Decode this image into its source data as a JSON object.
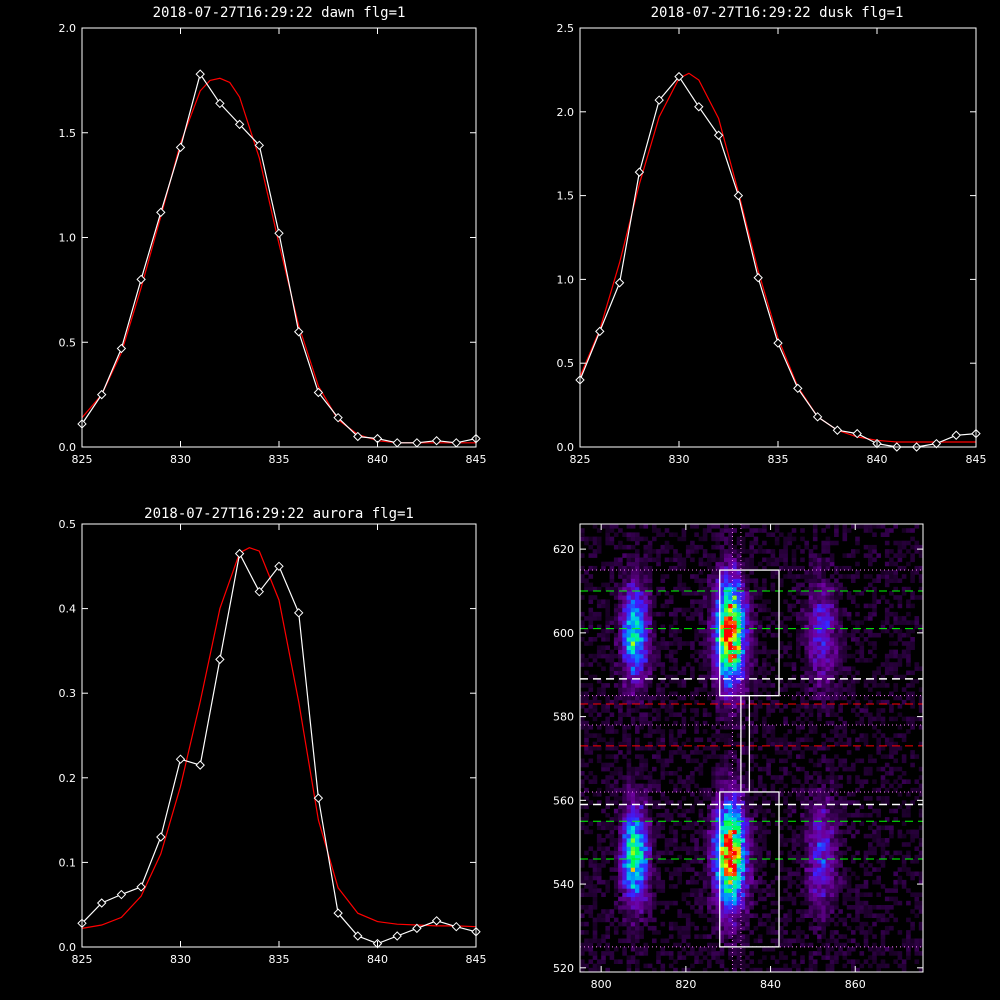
{
  "chart_data": [
    {
      "type": "line",
      "title": "2018-07-27T16:29:22 dawn flg=1",
      "xlim": [
        825,
        845
      ],
      "ylim": [
        0,
        2.0
      ],
      "xticks": [
        825,
        830,
        835,
        840,
        845
      ],
      "yticks": [
        0.0,
        0.5,
        1.0,
        1.5,
        2.0
      ],
      "xtick_labels": [
        "825",
        "830",
        "835",
        "840",
        "845"
      ],
      "ytick_labels": [
        "0.0",
        "0.5",
        "1.0",
        "1.5",
        "2.0"
      ],
      "series": [
        {
          "color": "#ffffff",
          "markers": true,
          "x": [
            825,
            826,
            827,
            828,
            829,
            830,
            831,
            832,
            833,
            834,
            835,
            836,
            837,
            838,
            839,
            840,
            841,
            842,
            843,
            844,
            845
          ],
          "y": [
            0.11,
            0.25,
            0.47,
            0.8,
            1.12,
            1.43,
            1.78,
            1.64,
            1.54,
            1.44,
            1.02,
            0.55,
            0.26,
            0.14,
            0.05,
            0.04,
            0.02,
            0.02,
            0.03,
            0.02,
            0.04
          ]
        },
        {
          "color": "#ff0000",
          "markers": false,
          "x": [
            825,
            826,
            827,
            828,
            829,
            830,
            831,
            831.5,
            832,
            832.5,
            833,
            834,
            835,
            836,
            837,
            838,
            839,
            840,
            841,
            842,
            843,
            844,
            845
          ],
          "y": [
            0.14,
            0.25,
            0.45,
            0.76,
            1.1,
            1.45,
            1.7,
            1.75,
            1.76,
            1.74,
            1.67,
            1.38,
            0.97,
            0.58,
            0.29,
            0.13,
            0.06,
            0.03,
            0.02,
            0.02,
            0.02,
            0.02,
            0.02
          ]
        }
      ]
    },
    {
      "type": "line",
      "title": "2018-07-27T16:29:22 dusk flg=1",
      "xlim": [
        825,
        845
      ],
      "ylim": [
        0,
        2.5
      ],
      "xticks": [
        825,
        830,
        835,
        840,
        845
      ],
      "yticks": [
        0.0,
        0.5,
        1.0,
        1.5,
        2.0,
        2.5
      ],
      "xtick_labels": [
        "825",
        "830",
        "835",
        "840",
        "845"
      ],
      "ytick_labels": [
        "0.0",
        "0.5",
        "1.0",
        "1.5",
        "2.0",
        "2.5"
      ],
      "series": [
        {
          "color": "#ffffff",
          "markers": true,
          "x": [
            825,
            826,
            827,
            828,
            829,
            830,
            831,
            832,
            833,
            834,
            835,
            836,
            837,
            838,
            839,
            840,
            841,
            842,
            843,
            844,
            845
          ],
          "y": [
            0.4,
            0.69,
            0.98,
            1.64,
            2.07,
            2.21,
            2.03,
            1.86,
            1.5,
            1.01,
            0.62,
            0.35,
            0.18,
            0.1,
            0.08,
            0.02,
            0.0,
            0.0,
            0.02,
            0.07,
            0.08
          ]
        },
        {
          "color": "#ff0000",
          "markers": false,
          "x": [
            825,
            826,
            827,
            828,
            829,
            830,
            830.5,
            831,
            832,
            833,
            834,
            835,
            836,
            837,
            838,
            839,
            840,
            841,
            842,
            843,
            844,
            845
          ],
          "y": [
            0.42,
            0.7,
            1.1,
            1.57,
            1.97,
            2.2,
            2.23,
            2.19,
            1.96,
            1.52,
            1.05,
            0.65,
            0.36,
            0.18,
            0.1,
            0.06,
            0.04,
            0.03,
            0.03,
            0.03,
            0.03,
            0.03
          ]
        }
      ]
    },
    {
      "type": "line",
      "title": "2018-07-27T16:29:22 aurora flg=1",
      "xlim": [
        825,
        845
      ],
      "ylim": [
        0,
        0.5
      ],
      "xticks": [
        825,
        830,
        835,
        840,
        845
      ],
      "yticks": [
        0.0,
        0.1,
        0.2,
        0.3,
        0.4,
        0.5
      ],
      "xtick_labels": [
        "825",
        "830",
        "835",
        "840",
        "845"
      ],
      "ytick_labels": [
        "0.0",
        "0.1",
        "0.2",
        "0.3",
        "0.4",
        "0.5"
      ],
      "series": [
        {
          "color": "#ffffff",
          "markers": true,
          "x": [
            825,
            826,
            827,
            828,
            829,
            830,
            831,
            832,
            833,
            834,
            835,
            836,
            837,
            838,
            839,
            840,
            841,
            842,
            843,
            844,
            845
          ],
          "y": [
            0.028,
            0.052,
            0.062,
            0.071,
            0.13,
            0.222,
            0.215,
            0.34,
            0.465,
            0.42,
            0.45,
            0.395,
            0.176,
            0.04,
            0.013,
            0.004,
            0.013,
            0.022,
            0.031,
            0.024,
            0.018
          ]
        },
        {
          "color": "#ff0000",
          "markers": false,
          "x": [
            825,
            826,
            827,
            828,
            829,
            830,
            831,
            832,
            833,
            833.5,
            834,
            835,
            836,
            837,
            838,
            839,
            840,
            841,
            842,
            843,
            844,
            845
          ],
          "y": [
            0.022,
            0.026,
            0.035,
            0.06,
            0.11,
            0.19,
            0.29,
            0.4,
            0.466,
            0.472,
            0.468,
            0.41,
            0.29,
            0.15,
            0.07,
            0.04,
            0.03,
            0.027,
            0.026,
            0.025,
            0.025,
            0.024
          ]
        }
      ]
    },
    {
      "type": "heatmap",
      "title": "",
      "xlim": [
        795,
        876
      ],
      "ylim": [
        519,
        626
      ],
      "xticks": [
        800,
        820,
        840,
        860
      ],
      "yticks": [
        520,
        540,
        560,
        580,
        600,
        620
      ],
      "xtick_labels": [
        "800",
        "820",
        "840",
        "860"
      ],
      "ytick_labels": [
        "520",
        "540",
        "560",
        "580",
        "600",
        "620"
      ],
      "blobs": [
        {
          "x": 808,
          "y": 600,
          "sx": 2.2,
          "sy": 8,
          "amp": 0.62
        },
        {
          "x": 808,
          "y": 547,
          "sx": 2.2,
          "sy": 8,
          "amp": 0.72
        },
        {
          "x": 830.5,
          "y": 600,
          "sx": 2.6,
          "sy": 9,
          "amp": 0.95
        },
        {
          "x": 830.5,
          "y": 547,
          "sx": 2.6,
          "sy": 9,
          "amp": 0.97
        },
        {
          "x": 852,
          "y": 600,
          "sx": 2.5,
          "sy": 9,
          "amp": 0.32
        },
        {
          "x": 852,
          "y": 547,
          "sx": 2.5,
          "sy": 9,
          "amp": 0.34
        }
      ],
      "colors": {
        "box": "#ffffff",
        "green_dash": "#00ff00",
        "red_dash": "#ff0000",
        "white_dash": "#ffffff",
        "dotted": "#ff80ff"
      },
      "green_dash_y": [
        610,
        601,
        555,
        546
      ],
      "white_dash_y": [
        589,
        559
      ],
      "red_dash_y": [
        583,
        573
      ],
      "dotted_y": [
        615,
        585,
        578,
        562,
        525
      ],
      "dotted_x": [
        831,
        833
      ],
      "boxes": [
        {
          "x0": 828,
          "x1": 842,
          "y0": 585,
          "y1": 615
        },
        {
          "x0": 828,
          "x1": 842,
          "y0": 525,
          "y1": 562
        },
        {
          "x0": 833,
          "x1": 835,
          "y0": 562,
          "y1": 585
        }
      ]
    }
  ]
}
